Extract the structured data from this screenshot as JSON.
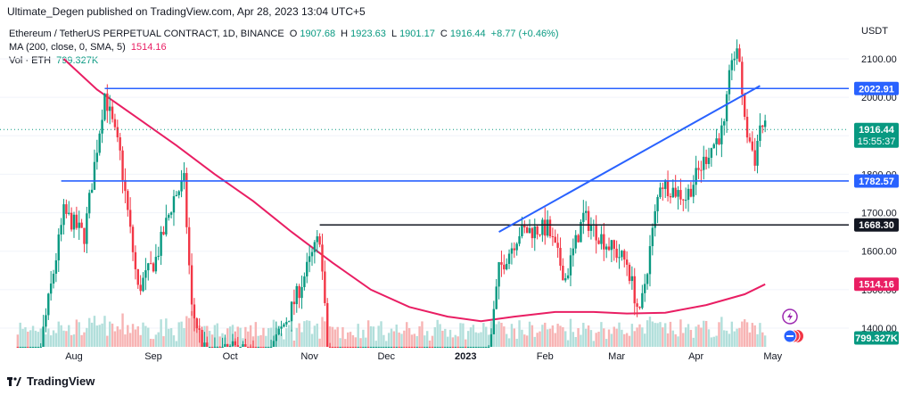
{
  "header": {
    "published": "Ultimate_Degen published on TradingView.com, Apr 28, 2023 13:04 UTC+5"
  },
  "legend": {
    "symbol": "Ethereum / TetherUS PERPETUAL CONTRACT, 1D, BINANCE",
    "o_label": "O",
    "o": "1907.68",
    "h_label": "H",
    "h": "1923.63",
    "l_label": "L",
    "l": "1901.17",
    "c_label": "C",
    "c": "1916.44",
    "change": "+8.77 (+0.46%)",
    "ma_label": "MA (200, close, 0, SMA, 5)",
    "ma_value": "1514.16",
    "vol_label": "Vol · ETH",
    "vol_value": "799.327K"
  },
  "colors": {
    "up": "#089981",
    "down": "#f23645",
    "ma": "#e91e63",
    "trendline": "#2962ff",
    "level_black": "#131722",
    "vol_up": "#b2dfdb",
    "vol_down": "#f7b4b4"
  },
  "footer": {
    "brand": "TradingView",
    "logo_icon": "tradingview-logo-icon"
  },
  "chart_data": {
    "type": "candlestick",
    "currency_label": "USDT",
    "y_ticks": [
      "2100.00",
      "2000.00",
      "1900.00",
      "1800.00",
      "1700.00",
      "1600.00",
      "1500.00",
      "1400.00"
    ],
    "x_labels": [
      "Aug",
      "Sep",
      "Oct",
      "Nov",
      "Dec",
      "2023",
      "Feb",
      "Mar",
      "Apr",
      "May"
    ],
    "price_tags": {
      "resistance": "2022.91",
      "current_price": "1916.44",
      "countdown": "15:55:37",
      "support": "1782.57",
      "black_level": "1668.30",
      "ma": "1514.16",
      "volume": "799.327K"
    },
    "horizontal_levels": [
      {
        "value": 2022.91,
        "color": "#2962ff"
      },
      {
        "value": 1782.57,
        "color": "#2962ff"
      },
      {
        "value": 1668.3,
        "color": "#131722"
      }
    ],
    "trendline": {
      "from": [
        "2023-01-14",
        1650
      ],
      "to": [
        "2023-04-26",
        2030
      ]
    },
    "ma200_points": [
      [
        "2022-07-28",
        2100
      ],
      [
        "2022-08-10",
        2020
      ],
      [
        "2022-08-25",
        1950
      ],
      [
        "2022-09-10",
        1875
      ],
      [
        "2022-09-25",
        1800
      ],
      [
        "2022-10-10",
        1730
      ],
      [
        "2022-10-25",
        1650
      ],
      [
        "2022-11-10",
        1570
      ],
      [
        "2022-11-25",
        1500
      ],
      [
        "2022-12-10",
        1455
      ],
      [
        "2022-12-25",
        1430
      ],
      [
        "2023-01-07",
        1418
      ],
      [
        "2023-01-20",
        1430
      ],
      [
        "2023-02-05",
        1442
      ],
      [
        "2023-02-20",
        1442
      ],
      [
        "2023-03-05",
        1438
      ],
      [
        "2023-03-20",
        1440
      ],
      [
        "2023-04-05",
        1460
      ],
      [
        "2023-04-20",
        1488
      ],
      [
        "2023-04-28",
        1514
      ]
    ]
  }
}
